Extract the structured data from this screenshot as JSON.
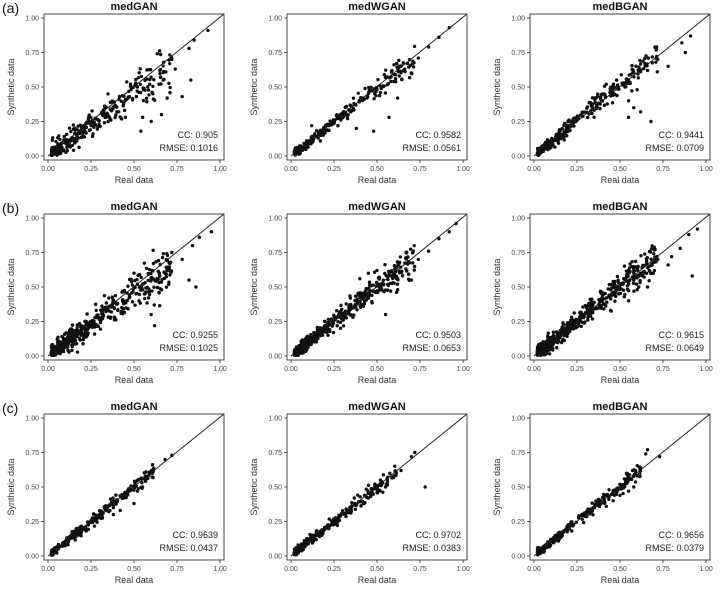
{
  "figure": {
    "rows": [
      {
        "label": "(a)"
      },
      {
        "label": "(b)"
      },
      {
        "label": "(c)"
      }
    ]
  },
  "chart_data": [
    {
      "type": "scatter",
      "title": "medGAN",
      "xlabel": "Real data",
      "ylabel": "Synthetic data",
      "xlim": [
        0,
        1
      ],
      "ylim": [
        0,
        1
      ],
      "cc": "CC: 0.905",
      "rmse": "RMSE: 0.1016",
      "seed": 11,
      "n": 300,
      "spread": 0.07,
      "bias": -0.05,
      "reflines": true,
      "grid": false,
      "xticks": [
        "0.00",
        "0.25",
        "0.50",
        "0.75",
        "1.00"
      ],
      "yticks": [
        "0.00",
        "0.25",
        "0.50",
        "0.75",
        "1.00"
      ],
      "reference_line": "y = x",
      "points": [
        [
          0.93,
          0.91
        ],
        [
          0.85,
          0.84
        ],
        [
          0.82,
          0.78
        ],
        [
          0.74,
          0.63
        ],
        [
          0.67,
          0.55
        ],
        [
          0.83,
          0.55
        ],
        [
          0.78,
          0.43
        ],
        [
          0.6,
          0.25
        ],
        [
          0.55,
          0.28
        ],
        [
          0.45,
          0.28
        ],
        [
          0.66,
          0.3
        ],
        [
          0.54,
          0.18
        ],
        [
          0.72,
          0.7
        ],
        [
          0.65,
          0.62
        ],
        [
          0.52,
          0.5
        ],
        [
          0.48,
          0.52
        ],
        [
          0.44,
          0.38
        ],
        [
          0.4,
          0.32
        ]
      ]
    },
    {
      "type": "scatter",
      "title": "medWGAN",
      "xlabel": "Real data",
      "ylabel": "Synthetic data",
      "xlim": [
        0,
        1
      ],
      "ylim": [
        0,
        1
      ],
      "cc": "CC: 0.9582",
      "rmse": "RMSE: 0.0561",
      "seed": 23,
      "n": 260,
      "spread": 0.035,
      "bias": -0.01,
      "reflines": true,
      "grid": false,
      "xticks": [
        "0.00",
        "0.25",
        "0.50",
        "0.75",
        "1.00"
      ],
      "yticks": [
        "0.00",
        "0.25",
        "0.50",
        "0.75",
        "1.00"
      ],
      "reference_line": "y = x",
      "points": [
        [
          0.92,
          0.93
        ],
        [
          0.86,
          0.86
        ],
        [
          0.8,
          0.79
        ],
        [
          0.74,
          0.71
        ],
        [
          0.63,
          0.58
        ],
        [
          0.58,
          0.54
        ],
        [
          0.52,
          0.46
        ],
        [
          0.5,
          0.48
        ],
        [
          0.38,
          0.2
        ],
        [
          0.48,
          0.18
        ],
        [
          0.57,
          0.28
        ],
        [
          0.62,
          0.42
        ],
        [
          0.12,
          0.22
        ]
      ]
    },
    {
      "type": "scatter",
      "title": "medBGAN",
      "xlabel": "Real data",
      "ylabel": "Synthetic data",
      "xlim": [
        0,
        1
      ],
      "ylim": [
        0,
        1
      ],
      "cc": "CC: 0.9441",
      "rmse": "RMSE: 0.0709",
      "seed": 37,
      "n": 290,
      "spread": 0.045,
      "bias": 0.01,
      "reflines": true,
      "grid": false,
      "xticks": [
        "0.00",
        "0.25",
        "0.50",
        "0.75",
        "1.00"
      ],
      "yticks": [
        "0.00",
        "0.25",
        "0.50",
        "0.75",
        "1.00"
      ],
      "reference_line": "y = x",
      "points": [
        [
          0.91,
          0.87
        ],
        [
          0.86,
          0.82
        ],
        [
          0.88,
          0.75
        ],
        [
          0.78,
          0.65
        ],
        [
          0.72,
          0.7
        ],
        [
          0.66,
          0.62
        ],
        [
          0.6,
          0.48
        ],
        [
          0.58,
          0.35
        ],
        [
          0.62,
          0.32
        ],
        [
          0.55,
          0.4
        ],
        [
          0.48,
          0.55
        ],
        [
          0.42,
          0.52
        ],
        [
          0.46,
          0.44
        ],
        [
          0.68,
          0.25
        ],
        [
          0.55,
          0.28
        ],
        [
          0.35,
          0.42
        ]
      ]
    },
    {
      "type": "scatter",
      "title": "medGAN",
      "xlabel": "Real data",
      "ylabel": "Synthetic data",
      "xlim": [
        0,
        1
      ],
      "ylim": [
        0,
        1
      ],
      "cc": "CC: 0.9255",
      "rmse": "RMSE: 0.1025",
      "seed": 41,
      "n": 480,
      "spread": 0.07,
      "bias": -0.045,
      "reflines": true,
      "grid": false,
      "xticks": [
        "0.00",
        "0.25",
        "0.50",
        "0.75",
        "1.00"
      ],
      "yticks": [
        "0.00",
        "0.25",
        "0.50",
        "0.75",
        "1.00"
      ],
      "reference_line": "y = x",
      "points": [
        [
          0.95,
          0.9
        ],
        [
          0.88,
          0.86
        ],
        [
          0.84,
          0.8
        ],
        [
          0.78,
          0.7
        ],
        [
          0.82,
          0.55
        ],
        [
          0.86,
          0.5
        ],
        [
          0.66,
          0.48
        ],
        [
          0.68,
          0.6
        ],
        [
          0.72,
          0.75
        ],
        [
          0.6,
          0.3
        ],
        [
          0.62,
          0.22
        ],
        [
          0.56,
          0.45
        ],
        [
          0.52,
          0.52
        ],
        [
          0.5,
          0.6
        ]
      ]
    },
    {
      "type": "scatter",
      "title": "medWGAN",
      "xlabel": "Real data",
      "ylabel": "Synthetic data",
      "xlim": [
        0,
        1
      ],
      "ylim": [
        0,
        1
      ],
      "cc": "CC: 0.9503",
      "rmse": "RMSE: 0.0653",
      "seed": 53,
      "n": 520,
      "spread": 0.05,
      "bias": 0.0,
      "reflines": true,
      "grid": false,
      "xticks": [
        "0.00",
        "0.25",
        "0.50",
        "0.75",
        "1.00"
      ],
      "yticks": [
        "0.00",
        "0.25",
        "0.50",
        "0.75",
        "1.00"
      ],
      "reference_line": "y = x",
      "points": [
        [
          0.96,
          0.96
        ],
        [
          0.92,
          0.9
        ],
        [
          0.86,
          0.85
        ],
        [
          0.8,
          0.76
        ],
        [
          0.74,
          0.7
        ],
        [
          0.7,
          0.55
        ],
        [
          0.62,
          0.48
        ],
        [
          0.55,
          0.3
        ],
        [
          0.5,
          0.62
        ],
        [
          0.45,
          0.6
        ],
        [
          0.4,
          0.56
        ],
        [
          0.36,
          0.28
        ]
      ]
    },
    {
      "type": "scatter",
      "title": "medBGAN",
      "xlabel": "Real data",
      "ylabel": "Synthetic data",
      "xlim": [
        0,
        1
      ],
      "ylim": [
        0,
        1
      ],
      "cc": "CC: 0.9615",
      "rmse": "RMSE: 0.0649",
      "seed": 67,
      "n": 540,
      "spread": 0.05,
      "bias": 0.0,
      "reflines": true,
      "grid": false,
      "xticks": [
        "0.00",
        "0.25",
        "0.50",
        "0.75",
        "1.00"
      ],
      "yticks": [
        "0.00",
        "0.25",
        "0.50",
        "0.75",
        "1.00"
      ],
      "reference_line": "y = x",
      "points": [
        [
          0.95,
          0.92
        ],
        [
          0.9,
          0.88
        ],
        [
          0.85,
          0.78
        ],
        [
          0.8,
          0.72
        ],
        [
          0.92,
          0.58
        ],
        [
          0.72,
          0.7
        ],
        [
          0.66,
          0.5
        ],
        [
          0.6,
          0.48
        ],
        [
          0.55,
          0.4
        ],
        [
          0.58,
          0.55
        ],
        [
          0.62,
          0.6
        ],
        [
          0.7,
          0.62
        ],
        [
          0.78,
          0.66
        ],
        [
          0.46,
          0.5
        ]
      ]
    },
    {
      "type": "scatter",
      "title": "medGAN",
      "xlabel": "Real data",
      "ylabel": "Synthetic data",
      "xlim": [
        0,
        1
      ],
      "ylim": [
        0,
        1
      ],
      "cc": "CC: 0.9639",
      "rmse": "RMSE: 0.0437",
      "seed": 71,
      "n": 270,
      "spread": 0.03,
      "bias": 0.0,
      "xmax": 0.6,
      "reflines": true,
      "grid": false,
      "xticks": [
        "0.00",
        "0.25",
        "0.50",
        "0.75",
        "1.00"
      ],
      "yticks": [
        "0.00",
        "0.25",
        "0.50",
        "0.75",
        "1.00"
      ],
      "reference_line": "y = x",
      "points": [
        [
          0.72,
          0.73
        ],
        [
          0.68,
          0.7
        ],
        [
          0.55,
          0.5
        ],
        [
          0.52,
          0.47
        ],
        [
          0.48,
          0.48
        ],
        [
          0.44,
          0.42
        ],
        [
          0.5,
          0.38
        ],
        [
          0.42,
          0.33
        ],
        [
          0.38,
          0.3
        ]
      ]
    },
    {
      "type": "scatter",
      "title": "medWGAN",
      "xlabel": "Real data",
      "ylabel": "Synthetic data",
      "xlim": [
        0,
        1
      ],
      "ylim": [
        0,
        1
      ],
      "cc": "CC: 0.9702",
      "rmse": "RMSE: 0.0383",
      "seed": 83,
      "n": 260,
      "spread": 0.028,
      "bias": 0.0,
      "xmax": 0.6,
      "reflines": true,
      "grid": false,
      "xticks": [
        "0.00",
        "0.25",
        "0.50",
        "0.75",
        "1.00"
      ],
      "yticks": [
        "0.00",
        "0.25",
        "0.50",
        "0.75",
        "1.00"
      ],
      "reference_line": "y = x",
      "points": [
        [
          0.72,
          0.75
        ],
        [
          0.7,
          0.72
        ],
        [
          0.64,
          0.62
        ],
        [
          0.6,
          0.58
        ],
        [
          0.78,
          0.5
        ],
        [
          0.55,
          0.5
        ],
        [
          0.5,
          0.46
        ],
        [
          0.45,
          0.42
        ],
        [
          0.42,
          0.38
        ],
        [
          0.52,
          0.55
        ]
      ]
    },
    {
      "type": "scatter",
      "title": "medBGAN",
      "xlabel": "Real data",
      "ylabel": "Synthetic data",
      "xlim": [
        0,
        1
      ],
      "ylim": [
        0,
        1
      ],
      "cc": "CC: 0.9656",
      "rmse": "RMSE: 0.0379",
      "seed": 97,
      "n": 270,
      "spread": 0.03,
      "bias": 0.0,
      "xmax": 0.6,
      "reflines": true,
      "grid": false,
      "xticks": [
        "0.00",
        "0.25",
        "0.50",
        "0.75",
        "1.00"
      ],
      "yticks": [
        "0.00",
        "0.25",
        "0.50",
        "0.75",
        "1.00"
      ],
      "reference_line": "y = x",
      "points": [
        [
          0.66,
          0.77
        ],
        [
          0.65,
          0.74
        ],
        [
          0.73,
          0.72
        ],
        [
          0.62,
          0.64
        ],
        [
          0.58,
          0.5
        ],
        [
          0.55,
          0.47
        ],
        [
          0.5,
          0.44
        ],
        [
          0.46,
          0.4
        ],
        [
          0.42,
          0.36
        ],
        [
          0.48,
          0.46
        ]
      ]
    }
  ]
}
